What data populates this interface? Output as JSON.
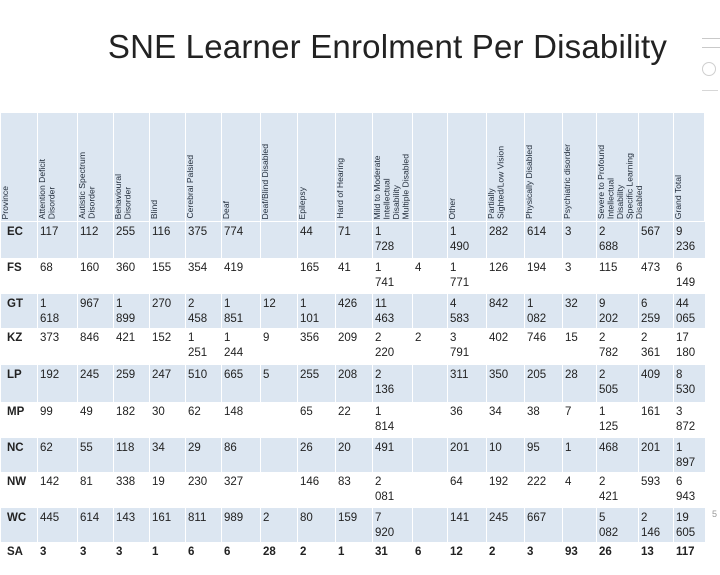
{
  "title": "SNE Learner Enrolment Per Disability",
  "headers": [
    "Province",
    "Attention Deficit\nDisorder",
    "Autistic Spectrum\nDisorder",
    "Behavioural\nDisorder",
    "Blind",
    "Cerebral Palsied",
    "Deaf",
    "Deaf/Blind Disabled",
    "Epilepsy",
    "Hard of Hearing",
    "Mild to Moderate\nIntellectual\nDisability\nMultiple Disabled",
    "",
    "Other",
    "Partially\nSighted/Low Vision",
    "Physically Disabled",
    "Psychiatric disorder",
    "Severe to Profound\nIntellectual\nDisability\nSpecific Learning\nDisabled",
    "",
    "Grand Total"
  ],
  "rows": [
    [
      "EC",
      "117",
      "112",
      "255",
      "116",
      "375",
      "774",
      "",
      "44",
      "71",
      "1\n728",
      "",
      "1\n490",
      "282",
      "614",
      "3",
      "2\n688",
      "567",
      "9\n236"
    ],
    [
      "FS",
      "68",
      "160",
      "360",
      "155",
      "354",
      "419",
      "",
      "165",
      "41",
      "1\n741",
      "4",
      "1\n771",
      "126",
      "194",
      "3",
      "115",
      "473",
      "6\n149"
    ],
    [
      "GT",
      "1\n618",
      "967",
      "1\n899",
      "270",
      "2\n458",
      "1\n851",
      "12",
      "1\n101",
      "426",
      "11\n463",
      "",
      "4\n583",
      "842",
      "1\n082",
      "32",
      "9\n202",
      "6\n259",
      "44\n065"
    ],
    [
      "KZ",
      "373",
      "846",
      "421",
      "152",
      "1\n251",
      "1\n244",
      "9",
      "356",
      "209",
      "2\n220",
      "2",
      "3\n791",
      "402",
      "746",
      "15",
      "2\n782",
      "2\n361",
      "17\n180"
    ],
    [
      "LP",
      "192",
      "245",
      "259",
      "247",
      "510",
      "665",
      "5",
      "255",
      "208",
      "2\n136",
      "",
      "311",
      "350",
      "205",
      "28",
      "2\n505",
      "409",
      "8\n530"
    ],
    [
      "MP",
      "99",
      "49",
      "182",
      "30",
      "62",
      "148",
      "",
      "65",
      "22",
      "1\n814",
      "",
      "36",
      "34",
      "38",
      "7",
      "1\n125",
      "161",
      "3\n872"
    ],
    [
      "NC",
      "62",
      "55",
      "118",
      "34",
      "29",
      "86",
      "",
      "26",
      "20",
      "491",
      "",
      "201",
      "10",
      "95",
      "1",
      "468",
      "201",
      "1\n897"
    ],
    [
      "NW",
      "142",
      "81",
      "338",
      "19",
      "230",
      "327",
      "",
      "146",
      "83",
      "2\n081",
      "",
      "64",
      "192",
      "222",
      "4",
      "2\n421",
      "593",
      "6\n943"
    ],
    [
      "WC",
      "445",
      "614",
      "143",
      "161",
      "811",
      "989",
      "2",
      "80",
      "159",
      "7\n920",
      "",
      "141",
      "245",
      "667",
      "",
      "5\n082",
      "2\n146",
      "19\n605"
    ],
    [
      "SA",
      "3",
      "3",
      "3",
      "1",
      "6",
      "6",
      "28",
      "2",
      "1",
      "31",
      "6",
      "12",
      "2",
      "3",
      "93",
      "26",
      "13",
      "117"
    ]
  ],
  "page_number": "5"
}
